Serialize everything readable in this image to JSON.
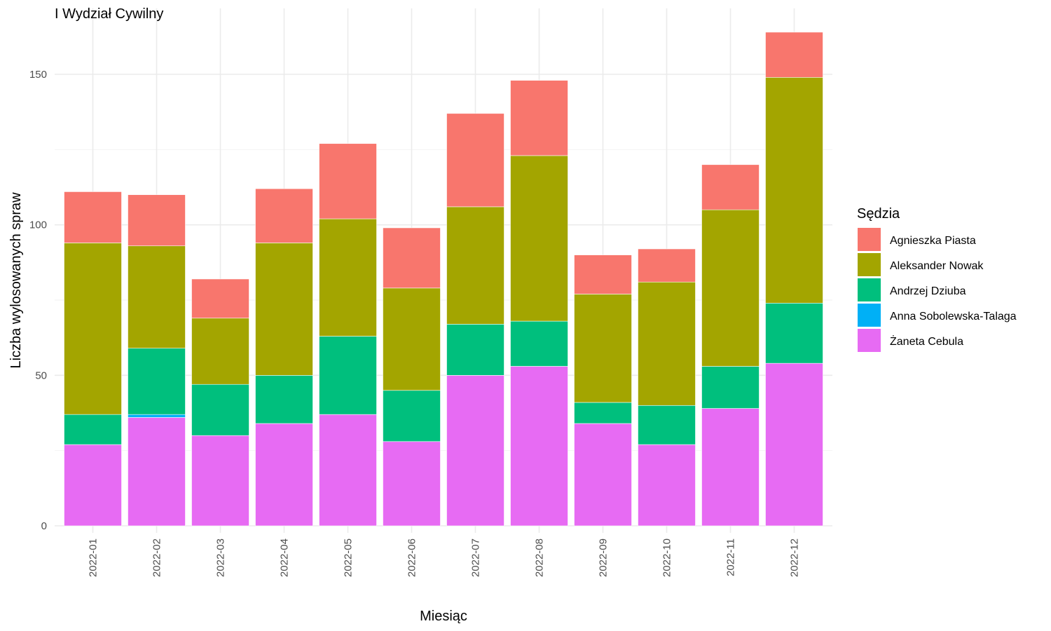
{
  "chart_data": {
    "type": "bar",
    "stacked": true,
    "title": "I Wydział Cywilny",
    "xlabel": "Miesiąc",
    "ylabel": "Liczba wylosowanych spraw",
    "ylim": [
      0,
      165
    ],
    "yticks": [
      0,
      50,
      100,
      150
    ],
    "grid": true,
    "legend": {
      "title": "Sędzia",
      "position": "right"
    },
    "categories": [
      "2022-01",
      "2022-02",
      "2022-03",
      "2022-04",
      "2022-05",
      "2022-06",
      "2022-07",
      "2022-08",
      "2022-09",
      "2022-10",
      "2022-11",
      "2022-12"
    ],
    "series": [
      {
        "name": "Żaneta Cebula",
        "color": "#E76BF3",
        "values": [
          27,
          36,
          30,
          34,
          37,
          28,
          50,
          53,
          34,
          27,
          39,
          54
        ]
      },
      {
        "name": "Anna Sobolewska-Talaga",
        "color": "#00B0F6",
        "values": [
          0,
          1,
          0,
          0,
          0,
          0,
          0,
          0,
          0,
          0,
          0,
          0
        ]
      },
      {
        "name": "Andrzej Dziuba",
        "color": "#00BF7D",
        "values": [
          10,
          22,
          17,
          16,
          26,
          17,
          17,
          15,
          7,
          13,
          14,
          20
        ]
      },
      {
        "name": "Aleksander Nowak",
        "color": "#A3A500",
        "values": [
          57,
          34,
          22,
          44,
          39,
          34,
          39,
          55,
          36,
          41,
          52,
          75
        ]
      },
      {
        "name": "Agnieszka Piasta",
        "color": "#F8766D",
        "values": [
          17,
          17,
          13,
          18,
          25,
          20,
          31,
          25,
          13,
          11,
          15,
          15
        ]
      }
    ],
    "legend_order": [
      "Agnieszka Piasta",
      "Aleksander Nowak",
      "Andrzej Dziuba",
      "Anna Sobolewska-Talaga",
      "Żaneta Cebula"
    ]
  }
}
